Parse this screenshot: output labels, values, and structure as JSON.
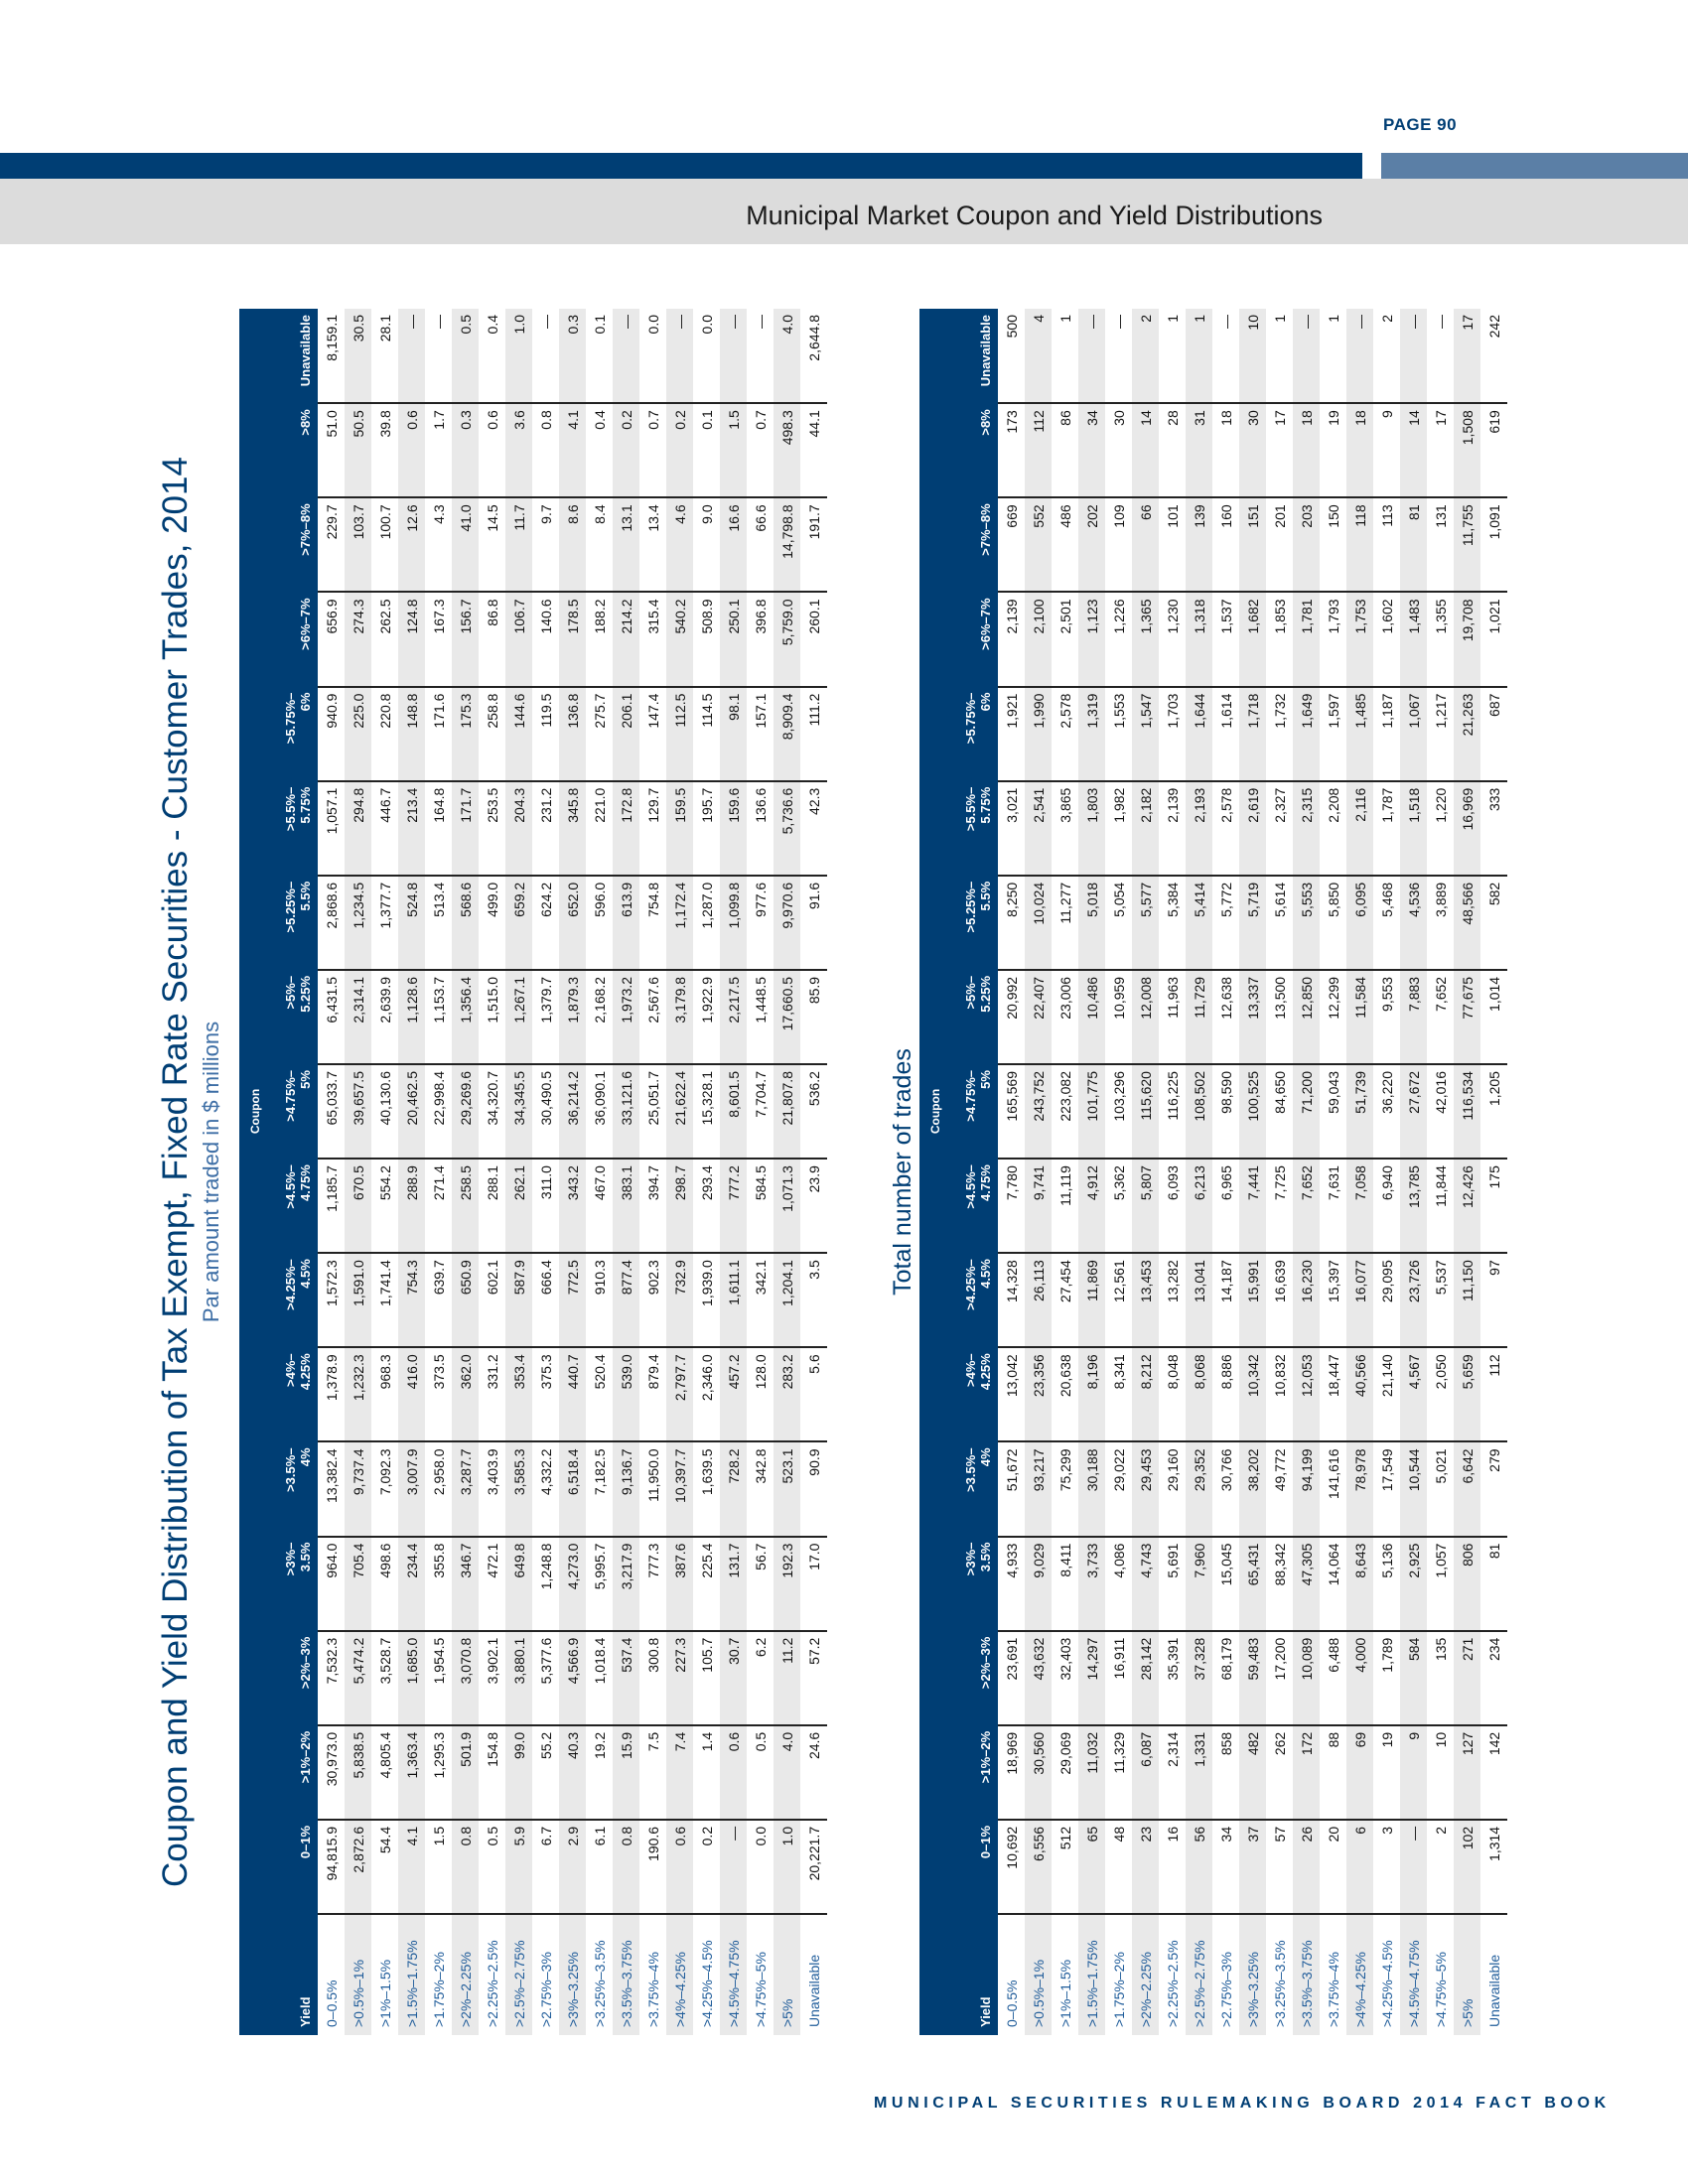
{
  "header": {
    "page": "PAGE 90",
    "section_title": "Municipal Market Coupon and Yield Distributions"
  },
  "footer": "MUNICIPAL SECURITIES RULEMAKING BOARD 2014 FACT BOOK",
  "title": "Coupon and Yield Distribution of Tax Exempt, Fixed Rate Securities - Customer Trades, 2014",
  "coupon_label": "Coupon",
  "yield_label": "Yield",
  "columns": [
    "0–1%",
    ">1%–2%",
    ">2%–3%",
    ">3%–\n3.5%",
    ">3.5%–\n4%",
    ">4%–\n4.25%",
    ">4.25%–\n4.5%",
    ">4.5%–\n4.75%",
    ">4.75%–\n5%",
    ">5%–\n5.25%",
    ">5.25%–\n5.5%",
    ">5.5%–\n5.75%",
    ">5.75%–\n6%",
    ">6%–7%",
    ">7%–8%",
    ">8%",
    "Unavailable"
  ],
  "yields": [
    "0–0.5%",
    ">0.5%–1%",
    ">1%–1.5%",
    ">1.5%–1.75%",
    ">1.75%–2%",
    ">2%–2.25%",
    ">2.25%–2.5%",
    ">2.5%–2.75%",
    ">2.75%–3%",
    ">3%–3.25%",
    ">3.25%–3.5%",
    ">3.5%–3.75%",
    ">3.75%–4%",
    ">4%–4.25%",
    ">4.25%–4.5%",
    ">4.5%–4.75%",
    ">4.75%–5%",
    ">5%",
    "Unavailable"
  ],
  "table1": {
    "subtitle": "Par amount traded in $ millions",
    "by_column": [
      [
        "94,815.9",
        "2,872.6",
        "54.4",
        "4.1",
        "1.5",
        "0.8",
        "0.5",
        "5.9",
        "6.7",
        "2.9",
        "6.1",
        "0.8",
        "190.6",
        "0.6",
        "0.2",
        "—",
        "0.0",
        "1.0",
        "20,221.7"
      ],
      [
        "30,973.0",
        "5,838.5",
        "4,805.4",
        "1,363.4",
        "1,295.3",
        "501.9",
        "154.8",
        "99.0",
        "55.2",
        "40.3",
        "19.2",
        "15.9",
        "7.5",
        "7.4",
        "1.4",
        "0.6",
        "0.5",
        "4.0",
        "24.6"
      ],
      [
        "7,532.3",
        "5,474.2",
        "3,528.7",
        "1,685.0",
        "1,954.5",
        "3,070.8",
        "3,902.1",
        "3,880.1",
        "5,377.6",
        "4,566.9",
        "1,018.4",
        "537.4",
        "300.8",
        "227.3",
        "105.7",
        "30.7",
        "6.2",
        "11.2",
        "57.2"
      ],
      [
        "964.0",
        "705.4",
        "498.6",
        "234.4",
        "355.8",
        "346.7",
        "472.1",
        "649.8",
        "1,248.8",
        "4,273.0",
        "5,995.7",
        "3,217.9",
        "777.3",
        "387.6",
        "225.4",
        "131.7",
        "56.7",
        "192.3",
        "17.0"
      ],
      [
        "13,382.4",
        "9,737.4",
        "7,092.3",
        "3,007.9",
        "2,958.0",
        "3,287.7",
        "3,403.9",
        "3,585.3",
        "4,332.2",
        "6,518.4",
        "7,182.5",
        "9,136.7",
        "11,950.0",
        "10,397.7",
        "1,639.5",
        "728.2",
        "342.8",
        "523.1",
        "90.9"
      ],
      [
        "1,378.9",
        "1,232.3",
        "968.3",
        "416.0",
        "373.5",
        "362.0",
        "331.2",
        "353.4",
        "375.3",
        "440.7",
        "520.4",
        "539.0",
        "879.4",
        "2,797.7",
        "2,346.0",
        "457.2",
        "128.0",
        "283.2",
        "5.6"
      ],
      [
        "1,572.3",
        "1,591.0",
        "1,741.4",
        "754.3",
        "639.7",
        "650.9",
        "602.1",
        "587.9",
        "666.4",
        "772.5",
        "910.3",
        "877.4",
        "902.3",
        "732.9",
        "1,939.0",
        "1,611.1",
        "342.1",
        "1,204.1",
        "3.5"
      ],
      [
        "1,185.7",
        "670.5",
        "554.2",
        "288.9",
        "271.4",
        "258.5",
        "288.1",
        "262.1",
        "311.0",
        "343.2",
        "467.0",
        "383.1",
        "394.7",
        "298.7",
        "293.4",
        "777.2",
        "584.5",
        "1,071.3",
        "23.9"
      ],
      [
        "65,033.7",
        "39,657.5",
        "40,130.6",
        "20,462.5",
        "22,998.4",
        "29,269.6",
        "34,320.7",
        "34,345.5",
        "30,490.5",
        "36,214.2",
        "36,090.1",
        "33,121.6",
        "25,051.7",
        "21,622.4",
        "15,328.1",
        "8,601.5",
        "7,704.7",
        "21,807.8",
        "536.2"
      ],
      [
        "6,431.5",
        "2,314.1",
        "2,639.9",
        "1,128.6",
        "1,153.7",
        "1,356.4",
        "1,515.0",
        "1,267.1",
        "1,379.7",
        "1,879.3",
        "2,168.2",
        "1,973.2",
        "2,567.6",
        "3,179.8",
        "1,922.9",
        "2,217.5",
        "1,448.5",
        "17,660.5",
        "85.9"
      ],
      [
        "2,868.6",
        "1,234.5",
        "1,377.7",
        "524.8",
        "513.4",
        "568.6",
        "499.0",
        "659.2",
        "624.2",
        "652.0",
        "596.0",
        "613.9",
        "754.8",
        "1,172.4",
        "1,287.0",
        "1,099.8",
        "977.6",
        "9,970.6",
        "91.6"
      ],
      [
        "1,057.1",
        "294.8",
        "446.7",
        "213.4",
        "164.8",
        "171.7",
        "253.5",
        "204.3",
        "231.2",
        "345.8",
        "221.0",
        "172.8",
        "129.7",
        "159.5",
        "195.7",
        "159.6",
        "136.6",
        "5,736.6",
        "42.3"
      ],
      [
        "940.9",
        "225.0",
        "220.8",
        "148.8",
        "171.6",
        "175.3",
        "258.8",
        "144.6",
        "119.5",
        "136.8",
        "275.7",
        "206.1",
        "147.4",
        "112.5",
        "114.5",
        "98.1",
        "157.1",
        "8,909.4",
        "111.2"
      ],
      [
        "656.9",
        "274.3",
        "262.5",
        "124.8",
        "167.3",
        "156.7",
        "86.8",
        "106.7",
        "140.6",
        "178.5",
        "188.2",
        "214.2",
        "315.4",
        "540.2",
        "508.9",
        "250.1",
        "396.8",
        "5,759.0",
        "260.1"
      ],
      [
        "229.7",
        "103.7",
        "100.7",
        "12.6",
        "4.3",
        "41.0",
        "14.5",
        "11.7",
        "9.7",
        "8.6",
        "8.4",
        "13.1",
        "13.4",
        "4.6",
        "9.0",
        "16.6",
        "66.6",
        "14,798.8",
        "191.7"
      ],
      [
        "51.0",
        "50.5",
        "39.8",
        "0.6",
        "1.7",
        "0.3",
        "0.6",
        "3.6",
        "0.8",
        "4.1",
        "0.4",
        "0.2",
        "0.7",
        "0.2",
        "0.1",
        "1.5",
        "0.7",
        "498.3",
        "44.1"
      ],
      [
        "8,159.1",
        "30.5",
        "28.1",
        "—",
        "—",
        "0.5",
        "0.4",
        "1.0",
        "—",
        "0.3",
        "0.1",
        "—",
        "0.0",
        "—",
        "0.0",
        "—",
        "—",
        "4.0",
        "2,644.8"
      ]
    ]
  },
  "table2": {
    "subtitle": "Total number of trades",
    "by_column": [
      [
        "10,692",
        "6,556",
        "512",
        "65",
        "48",
        "23",
        "16",
        "56",
        "34",
        "37",
        "57",
        "26",
        "20",
        "6",
        "3",
        "—",
        "2",
        "102",
        "1,314"
      ],
      [
        "18,969",
        "30,560",
        "29,069",
        "11,032",
        "11,329",
        "6,087",
        "2,314",
        "1,331",
        "858",
        "482",
        "262",
        "172",
        "88",
        "69",
        "19",
        "9",
        "10",
        "127",
        "142"
      ],
      [
        "23,691",
        "43,632",
        "32,403",
        "14,297",
        "16,911",
        "28,142",
        "35,391",
        "37,328",
        "68,179",
        "59,483",
        "17,200",
        "10,089",
        "6,488",
        "4,000",
        "1,789",
        "584",
        "135",
        "271",
        "234"
      ],
      [
        "4,933",
        "9,029",
        "8,411",
        "3,733",
        "4,086",
        "4,743",
        "5,691",
        "7,960",
        "15,045",
        "65,431",
        "88,342",
        "47,305",
        "14,064",
        "8,643",
        "5,136",
        "2,925",
        "1,057",
        "806",
        "81"
      ],
      [
        "51,672",
        "93,217",
        "75,299",
        "30,188",
        "29,022",
        "29,453",
        "29,160",
        "29,352",
        "30,766",
        "38,202",
        "49,772",
        "94,199",
        "141,616",
        "78,978",
        "17,549",
        "10,544",
        "5,021",
        "6,642",
        "279"
      ],
      [
        "13,042",
        "23,356",
        "20,638",
        "8,196",
        "8,341",
        "8,212",
        "8,048",
        "8,068",
        "8,886",
        "10,342",
        "10,832",
        "12,053",
        "18,447",
        "40,566",
        "21,140",
        "4,567",
        "2,050",
        "5,659",
        "112"
      ],
      [
        "14,328",
        "26,113",
        "27,454",
        "11,869",
        "12,561",
        "13,453",
        "13,282",
        "13,041",
        "14,187",
        "15,991",
        "16,639",
        "16,230",
        "15,397",
        "16,077",
        "29,095",
        "23,726",
        "5,537",
        "11,150",
        "97"
      ],
      [
        "7,780",
        "9,741",
        "11,119",
        "4,912",
        "5,362",
        "5,807",
        "6,093",
        "6,213",
        "6,965",
        "7,441",
        "7,725",
        "7,652",
        "7,631",
        "7,058",
        "6,940",
        "13,785",
        "11,844",
        "12,426",
        "175"
      ],
      [
        "165,569",
        "243,752",
        "223,082",
        "101,775",
        "103,296",
        "115,620",
        "116,225",
        "108,502",
        "98,590",
        "100,525",
        "84,650",
        "71,200",
        "59,043",
        "51,739",
        "36,220",
        "27,672",
        "42,016",
        "116,534",
        "1,205"
      ],
      [
        "20,992",
        "22,407",
        "23,006",
        "10,486",
        "10,959",
        "12,008",
        "11,963",
        "11,729",
        "12,638",
        "13,337",
        "13,500",
        "12,850",
        "12,299",
        "11,584",
        "9,553",
        "7,883",
        "7,652",
        "77,675",
        "1,014"
      ],
      [
        "8,250",
        "10,024",
        "11,277",
        "5,018",
        "5,054",
        "5,577",
        "5,384",
        "5,414",
        "5,772",
        "5,719",
        "5,614",
        "5,553",
        "5,850",
        "6,095",
        "5,468",
        "4,536",
        "3,889",
        "48,566",
        "582"
      ],
      [
        "3,021",
        "2,541",
        "3,865",
        "1,803",
        "1,982",
        "2,182",
        "2,139",
        "2,193",
        "2,578",
        "2,619",
        "2,327",
        "2,315",
        "2,208",
        "2,116",
        "1,787",
        "1,518",
        "1,220",
        "16,969",
        "333"
      ],
      [
        "1,921",
        "1,990",
        "2,578",
        "1,319",
        "1,553",
        "1,547",
        "1,703",
        "1,644",
        "1,614",
        "1,718",
        "1,732",
        "1,649",
        "1,597",
        "1,485",
        "1,187",
        "1,067",
        "1,217",
        "21,263",
        "687"
      ],
      [
        "2,139",
        "2,100",
        "2,501",
        "1,123",
        "1,226",
        "1,365",
        "1,230",
        "1,318",
        "1,537",
        "1,682",
        "1,853",
        "1,781",
        "1,793",
        "1,753",
        "1,602",
        "1,483",
        "1,355",
        "19,708",
        "1,021"
      ],
      [
        "669",
        "552",
        "486",
        "202",
        "109",
        "66",
        "101",
        "139",
        "160",
        "151",
        "201",
        "203",
        "150",
        "118",
        "113",
        "81",
        "131",
        "11,755",
        "1,091"
      ],
      [
        "173",
        "112",
        "86",
        "34",
        "30",
        "14",
        "28",
        "31",
        "18",
        "30",
        "17",
        "18",
        "19",
        "18",
        "9",
        "14",
        "17",
        "1,508",
        "619"
      ],
      [
        "500",
        "4",
        "1",
        "—",
        "—",
        "2",
        "1",
        "1",
        "—",
        "10",
        "1",
        "—",
        "1",
        "—",
        "2",
        "—",
        "—",
        "17",
        "242"
      ]
    ]
  }
}
